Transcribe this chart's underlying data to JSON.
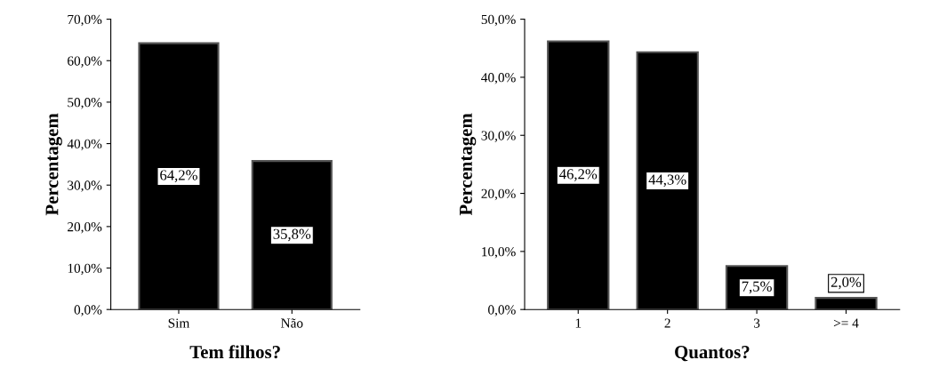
{
  "chart_data": [
    {
      "type": "bar",
      "xlabel": "Tem filhos?",
      "ylabel": "Percentagem",
      "categories": [
        "Sim",
        "Não"
      ],
      "values": [
        64.2,
        35.8
      ],
      "color": "#000000",
      "value_labels": [
        "64,2%",
        "35,8%"
      ],
      "ylim": [
        0,
        70
      ],
      "yticks": [
        {
          "value": 0,
          "label": "0,0%"
        },
        {
          "value": 10,
          "label": "10,0%"
        },
        {
          "value": 20,
          "label": "20,0%"
        },
        {
          "value": 30,
          "label": "30,0%"
        },
        {
          "value": 40,
          "label": "40,0%"
        },
        {
          "value": 50,
          "label": "50,0%"
        },
        {
          "value": 60,
          "label": "60,0%"
        },
        {
          "value": 70,
          "label": "70,0%"
        }
      ],
      "grid": false,
      "legend": false
    },
    {
      "type": "bar",
      "xlabel": "Quantos?",
      "ylabel": "Percentagem",
      "categories": [
        "1",
        "2",
        "3",
        ">= 4"
      ],
      "values": [
        46.2,
        44.3,
        7.5,
        2.0
      ],
      "color": "#000000",
      "value_labels": [
        "46,2%",
        "44,3%",
        "7,5%",
        "2,0%"
      ],
      "ylim": [
        0,
        50
      ],
      "yticks": [
        {
          "value": 0,
          "label": "0,0%"
        },
        {
          "value": 10,
          "label": "10,0%"
        },
        {
          "value": 20,
          "label": "20,0%"
        },
        {
          "value": 30,
          "label": "30,0%"
        },
        {
          "value": 40,
          "label": "40,0%"
        },
        {
          "value": 50,
          "label": "50,0%"
        }
      ],
      "grid": false,
      "legend": false
    }
  ]
}
